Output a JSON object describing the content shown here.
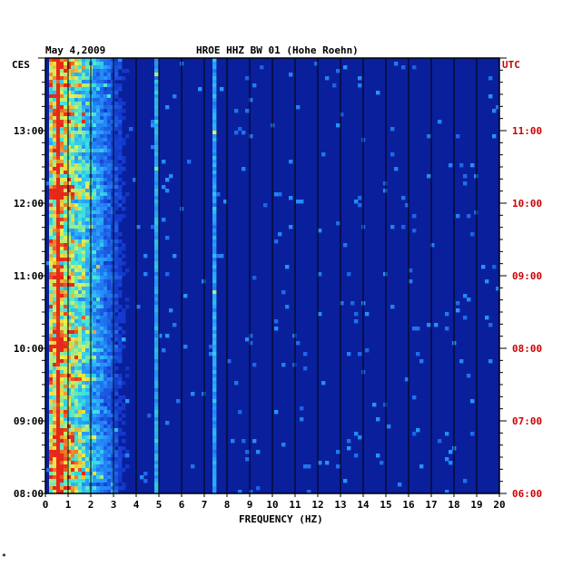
{
  "chart_data": {
    "type": "heatmap",
    "title_date": "May 4,2009",
    "title_station": "HROE HHZ BW 01 (Hohe Roehn)",
    "left_axis_label": "CES",
    "right_axis_label": "UTC",
    "xlabel": "FREQUENCY (HZ)",
    "xlim": [
      0,
      20
    ],
    "x_ticks": [
      "0",
      "1",
      "2",
      "3",
      "4",
      "5",
      "6",
      "7",
      "8",
      "9",
      "10",
      "11",
      "12",
      "13",
      "14",
      "15",
      "16",
      "17",
      "18",
      "19",
      "20"
    ],
    "time_range_local_hours": [
      8.0,
      14.0
    ],
    "left_ticks": [
      {
        "label": "08:00",
        "hour": 8
      },
      {
        "label": "09:00",
        "hour": 9
      },
      {
        "label": "10:00",
        "hour": 10
      },
      {
        "label": "11:00",
        "hour": 11
      },
      {
        "label": "12:00",
        "hour": 12
      },
      {
        "label": "13:00",
        "hour": 13
      }
    ],
    "right_ticks": [
      {
        "label": "06:00",
        "hour": 8
      },
      {
        "label": "07:00",
        "hour": 9
      },
      {
        "label": "08:00",
        "hour": 10
      },
      {
        "label": "09:00",
        "hour": 11
      },
      {
        "label": "10:00",
        "hour": 12
      },
      {
        "label": "11:00",
        "hour": 13
      }
    ],
    "colors": {
      "background": "#0a1f9c",
      "low": "#1530c0",
      "mid": "#2aa0ff",
      "high": "#f7f74a",
      "peak": "#e8261b",
      "left_labels": "#000000",
      "right_labels": "#cc0000"
    },
    "persistent_lines_hz": [
      4.9,
      7.4,
      0.55
    ],
    "energy_profile": {
      "note_band_hz": [
        0.2,
        3.8
      ],
      "peak_hz": 0.6
    }
  },
  "footer_mark": "*"
}
